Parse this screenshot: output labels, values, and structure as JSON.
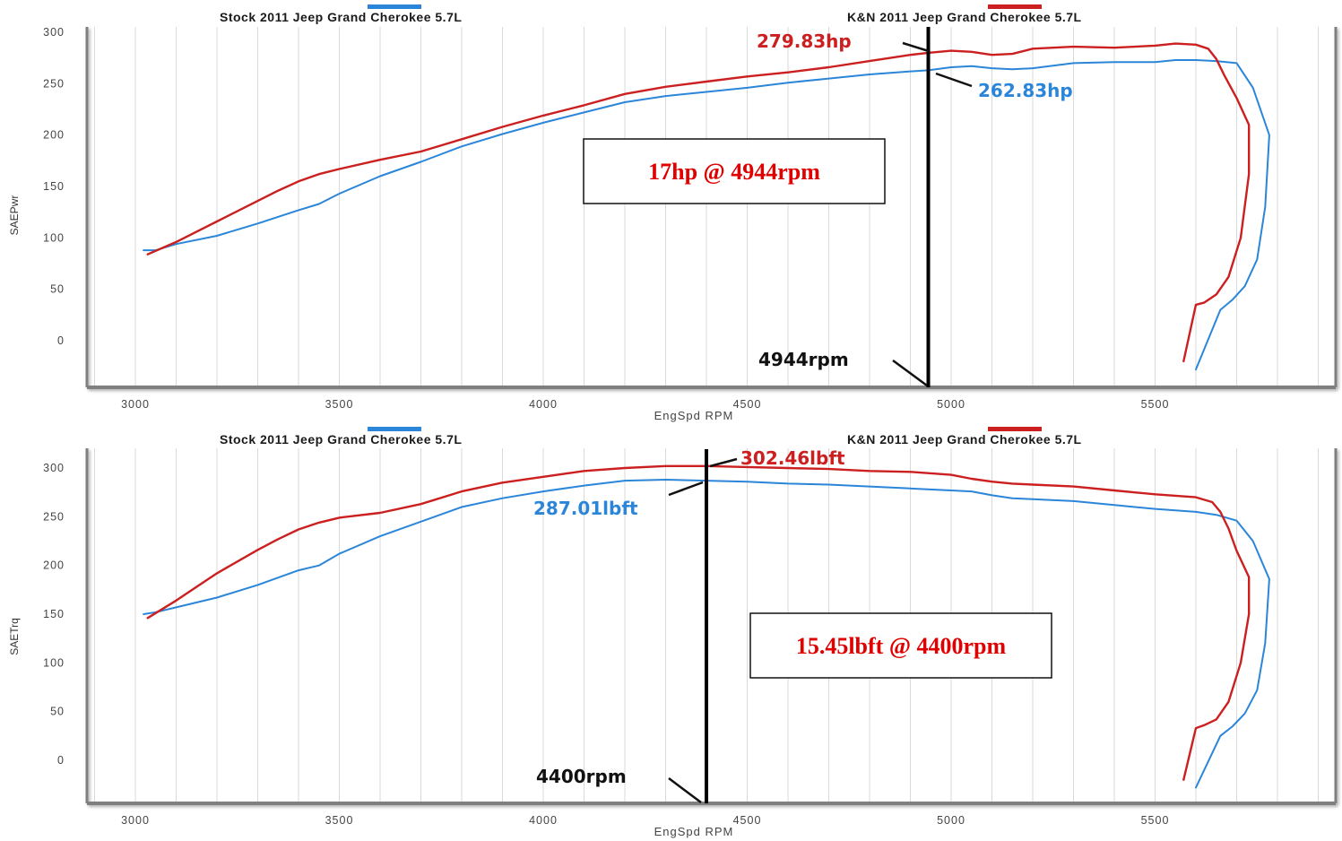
{
  "colors": {
    "stock": "#2b86d9",
    "kn": "#cc1f1f",
    "marker": "#000000",
    "axis": "#7f7f7f",
    "grid": "#d9d9d9",
    "box_text": "#e00000"
  },
  "chart_data": [
    {
      "type": "line",
      "legend": [
        "Stock 2011 Jeep Grand Cherokee 5.7L",
        "K&N 2011 Jeep Grand Cherokee 5.7L"
      ],
      "xlabel": "EngSpd RPM",
      "ylabel": "SAEPwr",
      "xlim": [
        2900,
        5950
      ],
      "ylim": [
        -45,
        300
      ],
      "xticks": [
        3000,
        3500,
        4000,
        4500,
        5000,
        5500
      ],
      "xtick_labels": [
        "3000",
        "3500",
        "4000",
        "4500",
        "5000",
        "5500"
      ],
      "yticks": [
        0,
        50,
        100,
        150,
        200,
        250,
        300
      ],
      "ytick_labels": [
        "0",
        "50",
        "100",
        "150",
        "200",
        "250",
        "300"
      ],
      "series": [
        {
          "name": "Stock 2011 Jeep Grand Cherokee 5.7L",
          "color": "#2b86d9",
          "points": [
            [
              3020,
              88
            ],
            [
              3050,
              88
            ],
            [
              3100,
              94
            ],
            [
              3200,
              102
            ],
            [
              3300,
              114
            ],
            [
              3400,
              127
            ],
            [
              3450,
              133
            ],
            [
              3500,
              143
            ],
            [
              3600,
              160
            ],
            [
              3700,
              174
            ],
            [
              3800,
              189
            ],
            [
              3900,
              201
            ],
            [
              4000,
              212
            ],
            [
              4100,
              222
            ],
            [
              4200,
              232
            ],
            [
              4300,
              238
            ],
            [
              4400,
              242
            ],
            [
              4500,
              246
            ],
            [
              4600,
              251
            ],
            [
              4700,
              255
            ],
            [
              4800,
              259
            ],
            [
              4900,
              262
            ],
            [
              4944,
              263
            ],
            [
              5000,
              266
            ],
            [
              5050,
              267
            ],
            [
              5100,
              265
            ],
            [
              5150,
              264
            ],
            [
              5200,
              265
            ],
            [
              5300,
              270
            ],
            [
              5400,
              271
            ],
            [
              5500,
              271
            ],
            [
              5550,
              273
            ],
            [
              5600,
              273
            ],
            [
              5650,
              272
            ],
            [
              5700,
              270
            ],
            [
              5740,
              246
            ],
            [
              5780,
              200
            ],
            [
              5770,
              130
            ],
            [
              5750,
              79
            ],
            [
              5720,
              53
            ],
            [
              5690,
              40
            ],
            [
              5660,
              30
            ],
            [
              5600,
              -28
            ]
          ]
        },
        {
          "name": "K&N 2011 Jeep Grand Cherokee 5.7L",
          "color": "#cc1f1f",
          "points": [
            [
              3030,
              84
            ],
            [
              3100,
              96
            ],
            [
              3200,
              116
            ],
            [
              3300,
              136
            ],
            [
              3350,
              146
            ],
            [
              3400,
              155
            ],
            [
              3450,
              162
            ],
            [
              3500,
              167
            ],
            [
              3600,
              176
            ],
            [
              3700,
              184
            ],
            [
              3800,
              196
            ],
            [
              3900,
              208
            ],
            [
              4000,
              219
            ],
            [
              4100,
              229
            ],
            [
              4200,
              240
            ],
            [
              4300,
              247
            ],
            [
              4400,
              252
            ],
            [
              4500,
              257
            ],
            [
              4600,
              261
            ],
            [
              4700,
              266
            ],
            [
              4800,
              272
            ],
            [
              4900,
              278
            ],
            [
              4944,
              280
            ],
            [
              5000,
              282
            ],
            [
              5050,
              281
            ],
            [
              5100,
              278
            ],
            [
              5150,
              279
            ],
            [
              5200,
              284
            ],
            [
              5300,
              286
            ],
            [
              5400,
              285
            ],
            [
              5500,
              287
            ],
            [
              5550,
              289
            ],
            [
              5600,
              288
            ],
            [
              5630,
              284
            ],
            [
              5650,
              274
            ],
            [
              5670,
              258
            ],
            [
              5700,
              236
            ],
            [
              5730,
              210
            ],
            [
              5730,
              162
            ],
            [
              5710,
              100
            ],
            [
              5680,
              62
            ],
            [
              5650,
              45
            ],
            [
              5620,
              37
            ],
            [
              5600,
              35
            ],
            [
              5570,
              -20
            ]
          ]
        }
      ],
      "marker": {
        "x": 4944,
        "label": "4944rpm"
      },
      "callouts": [
        {
          "text": "279.83hp",
          "series": "K&N 2011 Jeep Grand Cherokee 5.7L",
          "color": "#cc1f1f"
        },
        {
          "text": "262.83hp",
          "series": "Stock 2011 Jeep Grand Cherokee 5.7L",
          "color": "#2b86d9"
        }
      ],
      "box_text": "17hp @ 4944rpm"
    },
    {
      "type": "line",
      "legend": [
        "Stock 2011 Jeep Grand Cherokee 5.7L",
        "K&N 2011 Jeep Grand Cherokee 5.7L"
      ],
      "xlabel": "EngSpd RPM",
      "ylabel": "SAETrq",
      "xlim": [
        2900,
        5950
      ],
      "ylim": [
        -45,
        305
      ],
      "xticks": [
        3000,
        3500,
        4000,
        4500,
        5000,
        5500
      ],
      "xtick_labels": [
        "3000",
        "3500",
        "4000",
        "4500",
        "5000",
        "5500"
      ],
      "yticks": [
        0,
        50,
        100,
        150,
        200,
        250,
        300
      ],
      "ytick_labels": [
        "0",
        "50",
        "100",
        "150",
        "200",
        "250",
        "300"
      ],
      "series": [
        {
          "name": "Stock 2011 Jeep Grand Cherokee 5.7L",
          "color": "#2b86d9",
          "points": [
            [
              3020,
              150
            ],
            [
              3050,
              152
            ],
            [
              3100,
              157
            ],
            [
              3200,
              167
            ],
            [
              3300,
              180
            ],
            [
              3400,
              195
            ],
            [
              3450,
              200
            ],
            [
              3500,
              212
            ],
            [
              3600,
              230
            ],
            [
              3700,
              245
            ],
            [
              3800,
              260
            ],
            [
              3900,
              269
            ],
            [
              4000,
              276
            ],
            [
              4100,
              282
            ],
            [
              4200,
              287
            ],
            [
              4300,
              288
            ],
            [
              4400,
              287
            ],
            [
              4500,
              286
            ],
            [
              4600,
              284
            ],
            [
              4700,
              283
            ],
            [
              4800,
              281
            ],
            [
              4900,
              279
            ],
            [
              5000,
              277
            ],
            [
              5050,
              276
            ],
            [
              5100,
              272
            ],
            [
              5150,
              269
            ],
            [
              5200,
              268
            ],
            [
              5300,
              266
            ],
            [
              5400,
              262
            ],
            [
              5500,
              258
            ],
            [
              5600,
              255
            ],
            [
              5650,
              252
            ],
            [
              5700,
              246
            ],
            [
              5740,
              225
            ],
            [
              5780,
              186
            ],
            [
              5770,
              120
            ],
            [
              5750,
              72
            ],
            [
              5720,
              48
            ],
            [
              5690,
              35
            ],
            [
              5660,
              25
            ],
            [
              5600,
              -28
            ]
          ]
        },
        {
          "name": "K&N 2011 Jeep Grand Cherokee 5.7L",
          "color": "#cc1f1f",
          "points": [
            [
              3030,
              146
            ],
            [
              3100,
              164
            ],
            [
              3200,
              192
            ],
            [
              3300,
              216
            ],
            [
              3350,
              227
            ],
            [
              3400,
              237
            ],
            [
              3450,
              244
            ],
            [
              3500,
              249
            ],
            [
              3600,
              254
            ],
            [
              3700,
              263
            ],
            [
              3800,
              276
            ],
            [
              3900,
              285
            ],
            [
              4000,
              291
            ],
            [
              4100,
              297
            ],
            [
              4200,
              300
            ],
            [
              4300,
              302
            ],
            [
              4400,
              302
            ],
            [
              4500,
              301
            ],
            [
              4600,
              300
            ],
            [
              4700,
              299
            ],
            [
              4800,
              297
            ],
            [
              4900,
              296
            ],
            [
              5000,
              293
            ],
            [
              5050,
              289
            ],
            [
              5100,
              286
            ],
            [
              5150,
              284
            ],
            [
              5200,
              283
            ],
            [
              5300,
              281
            ],
            [
              5400,
              277
            ],
            [
              5500,
              273
            ],
            [
              5600,
              270
            ],
            [
              5640,
              265
            ],
            [
              5660,
              255
            ],
            [
              5680,
              238
            ],
            [
              5700,
              215
            ],
            [
              5730,
              188
            ],
            [
              5730,
              150
            ],
            [
              5710,
              100
            ],
            [
              5680,
              60
            ],
            [
              5650,
              42
            ],
            [
              5620,
              36
            ],
            [
              5600,
              33
            ],
            [
              5570,
              -20
            ]
          ]
        }
      ],
      "marker": {
        "x": 4400,
        "label": "4400rpm"
      },
      "callouts": [
        {
          "text": "302.46lbft",
          "series": "K&N 2011 Jeep Grand Cherokee 5.7L",
          "color": "#cc1f1f"
        },
        {
          "text": "287.01lbft",
          "series": "Stock 2011 Jeep Grand Cherokee 5.7L",
          "color": "#2b86d9"
        }
      ],
      "box_text": "15.45lbft @ 4400rpm"
    }
  ]
}
